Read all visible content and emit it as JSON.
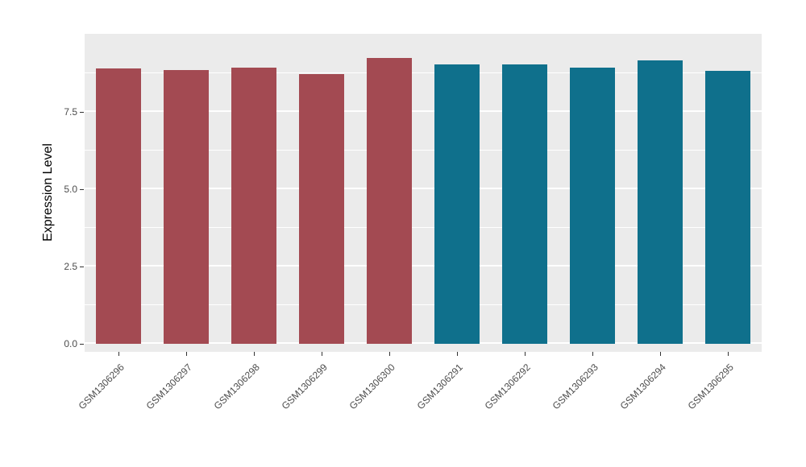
{
  "chart_data": {
    "type": "bar",
    "title": "",
    "xlabel": "",
    "ylabel": "Expression Level",
    "categories": [
      "GSM1306296",
      "GSM1306297",
      "GSM1306298",
      "GSM1306299",
      "GSM1306300",
      "GSM1306291",
      "GSM1306292",
      "GSM1306293",
      "GSM1306294",
      "GSM1306295"
    ],
    "values": [
      8.9,
      8.85,
      8.93,
      8.72,
      9.24,
      9.04,
      9.04,
      8.93,
      9.18,
      8.83
    ],
    "bar_colors": [
      "#A34A52",
      "#A34A52",
      "#A34A52",
      "#A34A52",
      "#A34A52",
      "#0F708C",
      "#0F708C",
      "#0F708C",
      "#0F708C",
      "#0F708C"
    ],
    "ylim": [
      0,
      9.95
    ],
    "yticks": [
      0,
      2.5,
      5,
      7.5
    ],
    "ytick_labels": [
      "0.0",
      "2.5",
      "5.0",
      "7.5"
    ],
    "yticks_minor": [
      1.25,
      3.75,
      6.25,
      8.75
    ],
    "grid": "on",
    "legend": "none",
    "colors": {
      "panel_bg": "#EBEBEB",
      "grid": "#FFFFFF",
      "tick_text": "#4D4D4D",
      "axis_title": "#000000",
      "group_left": "#A34A52",
      "group_right": "#0F708C"
    }
  }
}
